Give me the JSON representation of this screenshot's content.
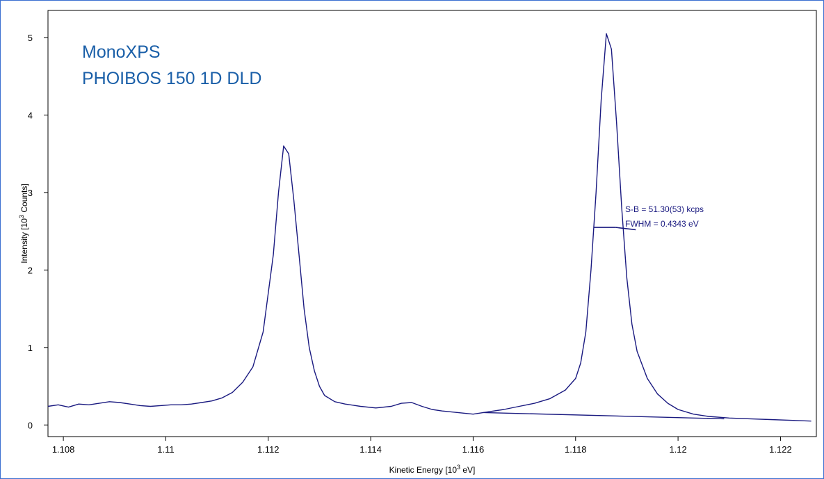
{
  "annotation_box": {
    "line1": "MonoXPS",
    "line2": "PHOIBOS 150 1D DLD"
  },
  "chart_data": {
    "type": "line",
    "xlabel": {
      "text": "Kinetic Energy [10",
      "sup": "3",
      "end": " eV]"
    },
    "ylabel": {
      "text": "Intensity [10",
      "sup": "3",
      "end": " Counts]"
    },
    "xlim": [
      1.1077,
      1.1227
    ],
    "ylim": [
      -0.15,
      5.35
    ],
    "x_ticks": [
      1.108,
      1.11,
      1.112,
      1.114,
      1.116,
      1.118,
      1.12,
      1.122
    ],
    "x_tick_labels": [
      "1.108",
      "1.11",
      "1.112",
      "1.114",
      "1.116",
      "1.118",
      "1.12",
      "1.122"
    ],
    "y_ticks": [
      0,
      1,
      2,
      3,
      4,
      5
    ],
    "y_tick_labels": [
      "0",
      "1",
      "2",
      "3",
      "4",
      "5"
    ],
    "grid": false,
    "line_color": "#1a1a80",
    "annotation_color": "#1a5fa8",
    "series": [
      {
        "x": [
          1.1077,
          1.1079,
          1.1081,
          1.1083,
          1.1085,
          1.1087,
          1.1089,
          1.1091,
          1.1093,
          1.1095,
          1.1097,
          1.1099,
          1.1101,
          1.1103,
          1.1105,
          1.1107,
          1.1109,
          1.1111,
          1.1113,
          1.1115,
          1.1117,
          1.1119,
          1.1121,
          1.1122,
          1.1123,
          1.1124,
          1.1125,
          1.1126,
          1.1127,
          1.1128,
          1.1129,
          1.113,
          1.1131,
          1.1133,
          1.1135,
          1.1138,
          1.1141,
          1.1144,
          1.1146,
          1.1148,
          1.115,
          1.1152,
          1.1154,
          1.1157,
          1.116,
          1.1163,
          1.1166,
          1.1169,
          1.1172,
          1.1175,
          1.1178,
          1.118,
          1.1181,
          1.1182,
          1.1183,
          1.1184,
          1.1185,
          1.1186,
          1.1187,
          1.1188,
          1.1189,
          1.119,
          1.1191,
          1.1192,
          1.1194,
          1.1196,
          1.1198,
          1.12,
          1.1203,
          1.1206,
          1.121,
          1.1214,
          1.1218,
          1.1222,
          1.1226
        ],
        "y": [
          0.24,
          0.26,
          0.23,
          0.27,
          0.26,
          0.28,
          0.3,
          0.29,
          0.27,
          0.25,
          0.24,
          0.25,
          0.26,
          0.26,
          0.27,
          0.29,
          0.31,
          0.35,
          0.42,
          0.55,
          0.75,
          1.2,
          2.2,
          3.0,
          3.6,
          3.5,
          2.9,
          2.2,
          1.5,
          1.0,
          0.7,
          0.5,
          0.38,
          0.3,
          0.27,
          0.24,
          0.22,
          0.24,
          0.28,
          0.29,
          0.24,
          0.2,
          0.18,
          0.16,
          0.14,
          0.17,
          0.2,
          0.24,
          0.28,
          0.34,
          0.45,
          0.6,
          0.8,
          1.2,
          2.0,
          3.0,
          4.2,
          5.05,
          4.85,
          3.9,
          2.8,
          1.9,
          1.3,
          0.95,
          0.6,
          0.4,
          0.28,
          0.2,
          0.14,
          0.11,
          0.09,
          0.08,
          0.07,
          0.06,
          0.05
        ]
      },
      {
        "x": [
          1.1162,
          1.1209
        ],
        "y": [
          0.16,
          0.08
        ]
      }
    ],
    "annotations": {
      "sb_text": "S-B = 51.30(53) kcps",
      "fwhm_text": "FWHM = 0.4343 eV"
    }
  }
}
